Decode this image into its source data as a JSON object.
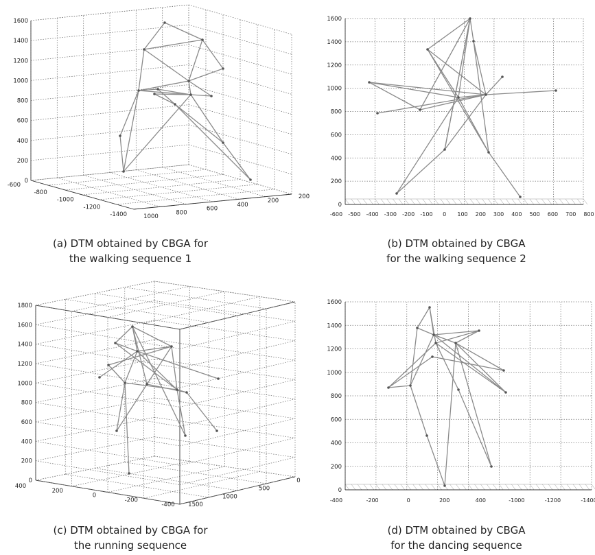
{
  "panels": [
    {
      "caption_line1": "(a) DTM obtained by CBGA for",
      "caption_line2": "the walking sequence 1"
    },
    {
      "caption_line1": "(b) DTM obtained by CBGA",
      "caption_line2": "for the walking sequence 2"
    },
    {
      "caption_line1": "(c) DTM obtained by CBGA for",
      "caption_line2": "the running sequence"
    },
    {
      "caption_line1": "(d) DTM obtained by CBGA",
      "caption_line2": "for the dancing sequence"
    }
  ],
  "chart_data": [
    {
      "type": "scatter",
      "projection": "3d",
      "title": "",
      "z_ticks": [
        "0",
        "200",
        "400",
        "600",
        "800",
        "1000",
        "1200",
        "1400",
        "1600"
      ],
      "x_ticks": [
        "-600",
        "-800",
        "-1000",
        "-1200",
        "-1400"
      ],
      "y_ticks": [
        "1000",
        "800",
        "600",
        "400",
        "200"
      ],
      "grid": true
    },
    {
      "type": "scatter",
      "projection": "3d",
      "title": "",
      "z_ticks": [
        "0",
        "200",
        "400",
        "600",
        "800",
        "1000",
        "1200",
        "1400",
        "1600"
      ],
      "x_ticks": [
        "-600",
        "-500",
        "-400",
        "-300",
        "-200",
        "-100",
        "0",
        "100",
        "200",
        "300",
        "400",
        "500",
        "600",
        "700",
        "800"
      ],
      "grid": true
    },
    {
      "type": "scatter",
      "projection": "3d",
      "title": "",
      "z_ticks": [
        "0",
        "200",
        "400",
        "600",
        "800",
        "1000",
        "1200",
        "1400",
        "1600",
        "1800"
      ],
      "x_ticks": [
        "400",
        "200",
        "0",
        "-200",
        "-400"
      ],
      "y_ticks": [
        "1500",
        "1000",
        "500",
        "0"
      ],
      "grid": true
    },
    {
      "type": "scatter",
      "projection": "3d",
      "title": "",
      "z_ticks": [
        "0",
        "200",
        "400",
        "600",
        "800",
        "1000",
        "1200",
        "1400",
        "1600"
      ],
      "x_ticks": [
        "-400",
        "-200",
        "0",
        "200",
        "400",
        "-1000",
        "-1200",
        "-1400"
      ],
      "grid": true
    }
  ]
}
